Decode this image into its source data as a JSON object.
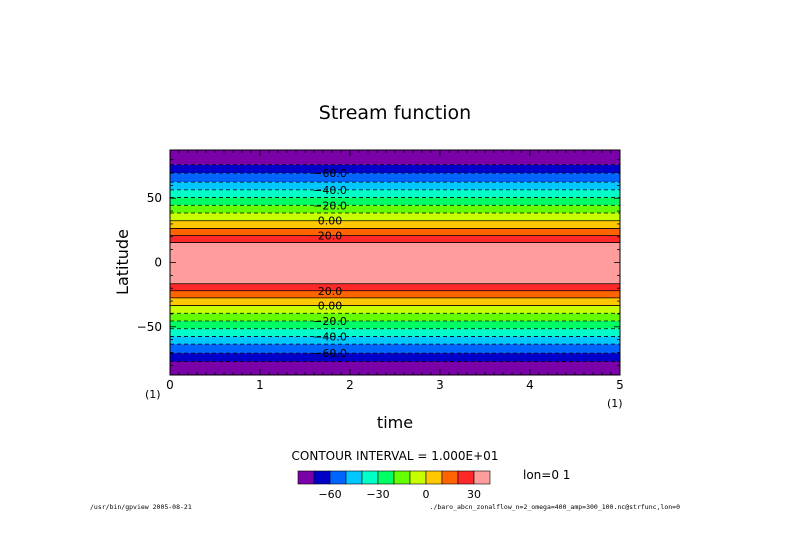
{
  "chart_data": {
    "type": "heatmap",
    "title": "Stream function",
    "xlabel": "time",
    "ylabel": "Latitude",
    "xlim": [
      0,
      5
    ],
    "ylim": [
      -87.5,
      87.5
    ],
    "x_ticks": [
      "0",
      "1",
      "2",
      "3",
      "4",
      "5"
    ],
    "y_ticks": [
      {
        "value": 50,
        "label": "50"
      },
      {
        "value": 0,
        "label": "0"
      },
      {
        "value": -50,
        "label": "−50"
      }
    ],
    "x_unit_left": "(1)",
    "x_unit_right": "(1)",
    "contour_interval_text": "CONTOUR INTERVAL = 1.000E+01",
    "slice_label": "lon=0 1",
    "colorbar": {
      "colors": [
        "#7a00a8",
        "#0000c8",
        "#0064ff",
        "#00c8ff",
        "#00ffc8",
        "#00ff64",
        "#64ff00",
        "#c8ff00",
        "#ffc800",
        "#ff6400",
        "#ff2828",
        "#ff9c9c"
      ],
      "tick_labels": [
        {
          "pos": 2,
          "label": "−60"
        },
        {
          "pos": 5,
          "label": "−30"
        },
        {
          "pos": 8,
          "label": "0"
        },
        {
          "pos": 11,
          "label": "30"
        }
      ]
    },
    "bands": [
      {
        "lat_top": 87.5,
        "lat_bot": 76,
        "color": "#7a00a8"
      },
      {
        "lat_top": 76,
        "lat_bot": 69.5,
        "color": "#0000c8"
      },
      {
        "lat_top": 69.5,
        "lat_bot": 62.5,
        "color": "#0064ff"
      },
      {
        "lat_top": 62.5,
        "lat_bot": 56.5,
        "color": "#00c8ff"
      },
      {
        "lat_top": 56.5,
        "lat_bot": 50.5,
        "color": "#00ffc8"
      },
      {
        "lat_top": 50.5,
        "lat_bot": 44.5,
        "color": "#00ff64"
      },
      {
        "lat_top": 44.5,
        "lat_bot": 38.5,
        "color": "#64ff00"
      },
      {
        "lat_top": 38.5,
        "lat_bot": 32.5,
        "color": "#c8ff00"
      },
      {
        "lat_top": 32.5,
        "lat_bot": 26.5,
        "color": "#ffc800"
      },
      {
        "lat_top": 26.5,
        "lat_bot": 21,
        "color": "#ff6400"
      },
      {
        "lat_top": 21,
        "lat_bot": 15.5,
        "color": "#ff2828"
      },
      {
        "lat_top": 15.5,
        "lat_bot": -16.5,
        "color": "#ff9c9c"
      },
      {
        "lat_top": -16.5,
        "lat_bot": -22,
        "color": "#ff2828"
      },
      {
        "lat_top": -22,
        "lat_bot": -27.5,
        "color": "#ff6400"
      },
      {
        "lat_top": -27.5,
        "lat_bot": -33.5,
        "color": "#ffc800"
      },
      {
        "lat_top": -33.5,
        "lat_bot": -39.5,
        "color": "#c8ff00"
      },
      {
        "lat_top": -39.5,
        "lat_bot": -45.5,
        "color": "#64ff00"
      },
      {
        "lat_top": -45.5,
        "lat_bot": -51.5,
        "color": "#00ff64"
      },
      {
        "lat_top": -51.5,
        "lat_bot": -57.5,
        "color": "#00ffc8"
      },
      {
        "lat_top": -57.5,
        "lat_bot": -63.5,
        "color": "#00c8ff"
      },
      {
        "lat_top": -63.5,
        "lat_bot": -70.5,
        "color": "#0064ff"
      },
      {
        "lat_top": -70.5,
        "lat_bot": -77,
        "color": "#0000c8"
      },
      {
        "lat_top": -77,
        "lat_bot": -87.5,
        "color": "#7a00a8"
      }
    ],
    "contours": [
      {
        "lat": 76,
        "dashed": true
      },
      {
        "lat": 69.5,
        "dashed": true
      },
      {
        "lat": 62.5,
        "dashed": true
      },
      {
        "lat": 56.5,
        "dashed": true
      },
      {
        "lat": 50.5,
        "dashed": true
      },
      {
        "lat": 44.5,
        "dashed": true
      },
      {
        "lat": 38.5,
        "dashed": true
      },
      {
        "lat": 32.5,
        "dashed": false
      },
      {
        "lat": 26.5,
        "dashed": false
      },
      {
        "lat": 21,
        "dashed": false
      },
      {
        "lat": 15.5,
        "dashed": false
      },
      {
        "lat": -16.5,
        "dashed": false
      },
      {
        "lat": -22,
        "dashed": false
      },
      {
        "lat": -27.5,
        "dashed": false
      },
      {
        "lat": -33.5,
        "dashed": false
      },
      {
        "lat": -39.5,
        "dashed": true
      },
      {
        "lat": -45.5,
        "dashed": true
      },
      {
        "lat": -51.5,
        "dashed": true
      },
      {
        "lat": -57.5,
        "dashed": true
      },
      {
        "lat": -63.5,
        "dashed": true
      },
      {
        "lat": -70.5,
        "dashed": true
      },
      {
        "lat": -77,
        "dashed": true
      }
    ],
    "contour_labels": [
      {
        "lat": 69.5,
        "text": "−60.0"
      },
      {
        "lat": 56.5,
        "text": "−40.0"
      },
      {
        "lat": 44.5,
        "text": "−20.0"
      },
      {
        "lat": 32.5,
        "text": "0.00"
      },
      {
        "lat": 21,
        "text": "20.0"
      },
      {
        "lat": -22,
        "text": "20.0"
      },
      {
        "lat": -33.5,
        "text": "0.00"
      },
      {
        "lat": -45.5,
        "text": "−20.0"
      },
      {
        "lat": -57.5,
        "text": "−40.0"
      },
      {
        "lat": -70.5,
        "text": "−60.0"
      }
    ]
  },
  "footer": {
    "left": "/usr/bin/gpview  2005-08-21",
    "right": "./baro_abcn_zonalflow_n=2_omega=400_amp=300_100.nc@strfunc,lon=0"
  }
}
